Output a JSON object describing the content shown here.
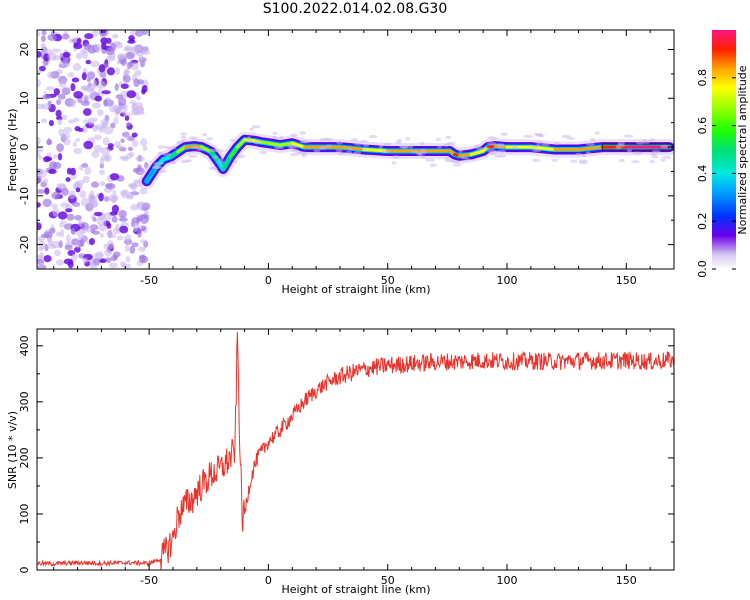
{
  "title": "S100.2022.014.02.08.G30",
  "chart_data": [
    {
      "type": "heatmap",
      "xlabel": "Height of straight line (km)",
      "ylabel": "Frequency (Hz)",
      "xlim": [
        -97,
        170
      ],
      "ylim": [
        -25,
        24
      ],
      "xticks": [
        -50,
        0,
        50,
        100,
        150
      ],
      "yticks": [
        -20,
        -10,
        0,
        10,
        20
      ],
      "ridge": {
        "x": [
          -51,
          -47,
          -44,
          -41,
          -38,
          -35,
          -31,
          -28,
          -24,
          -21,
          -19,
          -16,
          -13,
          -10,
          -6,
          -3,
          0,
          5,
          10,
          15,
          20,
          30,
          40,
          50,
          60,
          70,
          76,
          78,
          80,
          85,
          90,
          92,
          95,
          100,
          110,
          120,
          130,
          140,
          150,
          160,
          168
        ],
        "freq": [
          -7,
          -4,
          -2.5,
          -2,
          -1,
          0,
          0.2,
          0,
          -1,
          -3,
          -4.5,
          -2,
          0,
          1.5,
          1.3,
          1,
          0.8,
          0.4,
          0.8,
          0,
          0,
          0,
          -0.5,
          -0.8,
          -0.8,
          -0.8,
          -0.8,
          -1.5,
          -1.8,
          -1.5,
          -0.8,
          0,
          0.2,
          0,
          0,
          -0.5,
          -0.5,
          0,
          0,
          0,
          0
        ],
        "amplitude": [
          0.3,
          0.35,
          0.45,
          0.5,
          0.65,
          0.8,
          0.95,
          0.8,
          0.6,
          0.5,
          0.4,
          0.6,
          0.7,
          0.75,
          0.8,
          0.75,
          0.75,
          0.7,
          0.75,
          0.8,
          0.9,
          0.9,
          0.8,
          0.85,
          0.9,
          0.9,
          0.85,
          0.9,
          0.95,
          0.85,
          0.75,
          0.9,
          0.95,
          0.85,
          0.8,
          0.85,
          0.9,
          0.9,
          1.0,
          1.0,
          1.0
        ]
      },
      "colorbar": {
        "label": "Normalized spectral amplitude",
        "range": [
          0,
          1
        ],
        "ticks": [
          "0.0",
          "0.2",
          "0.4",
          "0.6",
          "0.8"
        ]
      }
    },
    {
      "type": "line",
      "xlabel": "Height of straight line (km)",
      "ylabel": "SNR (10 * v/v)",
      "xlim": [
        -97,
        170
      ],
      "ylim": [
        0,
        430
      ],
      "xticks": [
        -50,
        0,
        50,
        100,
        150
      ],
      "yticks": [
        0,
        100,
        200,
        300,
        400
      ],
      "color": "#e8342c",
      "series": [
        {
          "x": [
            -97,
            -90,
            -80,
            -70,
            -60,
            -50,
            -45,
            -42,
            -40,
            -38,
            -36,
            -34,
            -32,
            -30,
            -28,
            -26,
            -24,
            -22,
            -20,
            -18,
            -16,
            -14,
            -13,
            -12,
            -11,
            -10,
            -8,
            -6,
            -4,
            -2,
            0,
            4,
            8,
            12,
            16,
            20,
            25,
            30,
            35,
            40,
            45,
            50,
            60,
            70,
            80,
            90,
            100,
            110,
            120,
            130,
            140,
            150,
            160,
            170
          ],
          "y": [
            12,
            11,
            13,
            12,
            13,
            12,
            20,
            40,
            55,
            95,
            110,
            120,
            125,
            140,
            150,
            160,
            170,
            175,
            180,
            190,
            200,
            215,
            420,
            230,
            90,
            100,
            150,
            185,
            205,
            215,
            230,
            245,
            265,
            285,
            305,
            320,
            335,
            345,
            352,
            358,
            362,
            365,
            368,
            371,
            372,
            374,
            372,
            373,
            372,
            374,
            373,
            374,
            372,
            375
          ]
        }
      ]
    }
  ]
}
